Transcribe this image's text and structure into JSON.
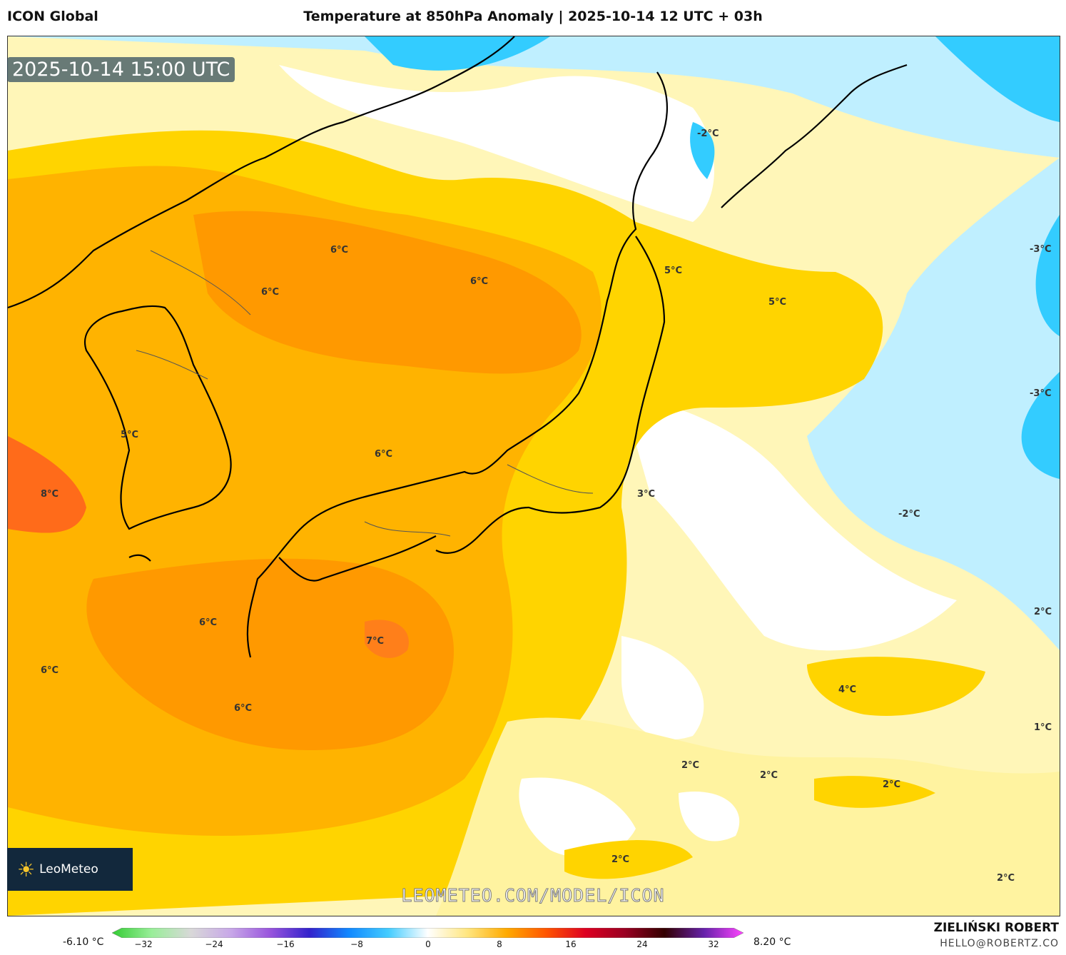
{
  "header": {
    "model": "ICON Global",
    "title": "Temperature at 850hPa Anomaly | 2025-10-14 12 UTC + 03h"
  },
  "map": {
    "timestamp": "2025-10-14 15:00 UTC",
    "watermark": "LEOMETEO.COM/MODEL/ICON",
    "logo_text": "LeoMeteo",
    "contour_labels": [
      "-2°C",
      "-3°C",
      "-3°C",
      "6°C",
      "6°C",
      "6°C",
      "5°C",
      "5°C",
      "5°C",
      "6°C",
      "8°C",
      "3°C",
      "-2°C",
      "6°C",
      "7°C",
      "2°C",
      "6°C",
      "6°C",
      "4°C",
      "1°C",
      "2°C",
      "2°C",
      "2°C",
      "2°C",
      "2°C"
    ],
    "colors": {
      "warm_orange": "#ff9900",
      "orange": "#ffb300",
      "yellow": "#ffd400",
      "pale_yellow": "#fff3a0",
      "white": "#ffffff",
      "light_blue": "#bfefff",
      "cyan": "#33ccff"
    }
  },
  "legend": {
    "min_label": "-6.10 °C",
    "max_label": "8.20 °C",
    "ticks": [
      "−32",
      "−24",
      "−16",
      "−8",
      "0",
      "8",
      "16",
      "24",
      "32"
    ],
    "scale_colors": [
      "#33cc33",
      "#99ee99",
      "#d8d8d8",
      "#c8a8e8",
      "#9955dd",
      "#3322cc",
      "#1188ff",
      "#44ccff",
      "#ffffff",
      "#ffe680",
      "#ffaa00",
      "#ff5500",
      "#dd0022",
      "#990022",
      "#330000",
      "#6622aa",
      "#ff44ff"
    ]
  },
  "author": {
    "name": "ZIELIŃSKI ROBERT",
    "email": "HELLO@ROBERTZ.CO"
  }
}
